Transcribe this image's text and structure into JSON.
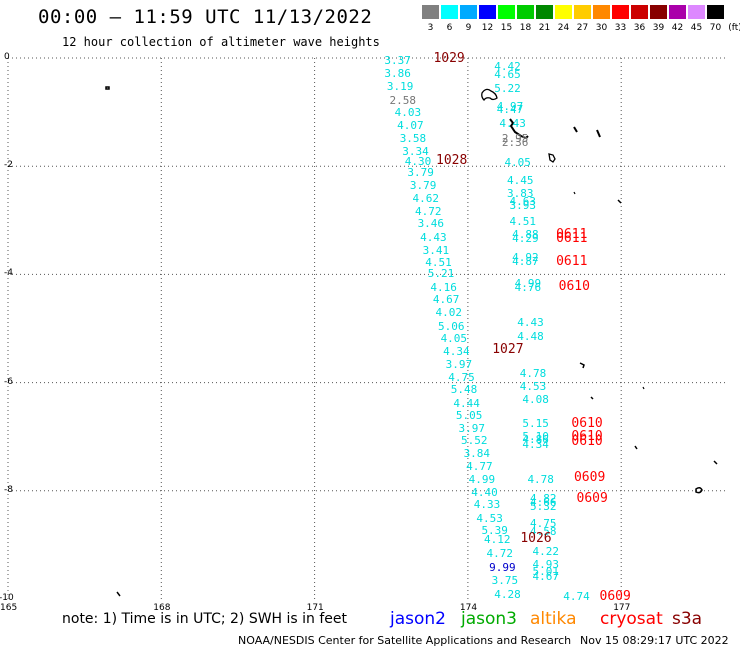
{
  "header": {
    "title": "00:00 — 11:59 UTC 11/13/2022",
    "subtitle": "12 hour collection of altimeter wave heights"
  },
  "legend": {
    "unit": "(ft)",
    "items": [
      {
        "label": "3",
        "color": "#808080"
      },
      {
        "label": "6",
        "color": "#00ffff"
      },
      {
        "label": "9",
        "color": "#00aaff"
      },
      {
        "label": "12",
        "color": "#0000ff"
      },
      {
        "label": "15",
        "color": "#00ff00"
      },
      {
        "label": "18",
        "color": "#00cc00"
      },
      {
        "label": "21",
        "color": "#008800"
      },
      {
        "label": "24",
        "color": "#ffff00"
      },
      {
        "label": "27",
        "color": "#ffcc00"
      },
      {
        "label": "30",
        "color": "#ff8800"
      },
      {
        "label": "33",
        "color": "#ff0000"
      },
      {
        "label": "36",
        "color": "#cc0000"
      },
      {
        "label": "39",
        "color": "#880000"
      },
      {
        "label": "42",
        "color": "#aa00aa"
      },
      {
        "label": "45",
        "color": "#dd88ff"
      },
      {
        "label": "70",
        "color": "#000000"
      }
    ]
  },
  "axes": {
    "lat_labels": [
      "0",
      "-2",
      "-4",
      "-6",
      "-8",
      "-10"
    ],
    "lon_labels": [
      "165",
      "168",
      "171",
      "174",
      "177"
    ]
  },
  "map_data": {
    "lat_range": [
      -10,
      0
    ],
    "lon_range": [
      165,
      179
    ],
    "observations": [
      {
        "text": "3.37",
        "lon": 172.6,
        "lat": -0.03,
        "color": "#00dddd"
      },
      {
        "text": "3.86",
        "lon": 172.6,
        "lat": -0.28,
        "color": "#00dddd"
      },
      {
        "text": "3.19",
        "lon": 172.65,
        "lat": -0.52,
        "color": "#00dddd"
      },
      {
        "text": "2.58",
        "lon": 172.7,
        "lat": -0.77,
        "color": "#777777"
      },
      {
        "text": "4.03",
        "lon": 172.8,
        "lat": -1.0,
        "color": "#00dddd"
      },
      {
        "text": "4.07",
        "lon": 172.85,
        "lat": -1.23,
        "color": "#00dddd"
      },
      {
        "text": "3.58",
        "lon": 172.9,
        "lat": -1.48,
        "color": "#00dddd"
      },
      {
        "text": "3.34",
        "lon": 172.95,
        "lat": -1.72,
        "color": "#00dddd"
      },
      {
        "text": "4.30",
        "lon": 173.0,
        "lat": -1.9,
        "color": "#00dddd"
      },
      {
        "text": "3.79",
        "lon": 173.05,
        "lat": -2.1,
        "color": "#00dddd"
      },
      {
        "text": "3.79",
        "lon": 173.1,
        "lat": -2.35,
        "color": "#00dddd"
      },
      {
        "text": "4.62",
        "lon": 173.15,
        "lat": -2.58,
        "color": "#00dddd"
      },
      {
        "text": "4.72",
        "lon": 173.2,
        "lat": -2.82,
        "color": "#00dddd"
      },
      {
        "text": "3.46",
        "lon": 173.25,
        "lat": -3.05,
        "color": "#00dddd"
      },
      {
        "text": "4.43",
        "lon": 173.3,
        "lat": -3.3,
        "color": "#00dddd"
      },
      {
        "text": "3.41",
        "lon": 173.35,
        "lat": -3.55,
        "color": "#00dddd"
      },
      {
        "text": "4.51",
        "lon": 173.4,
        "lat": -3.78,
        "color": "#00dddd"
      },
      {
        "text": "5.21",
        "lon": 173.45,
        "lat": -3.98,
        "color": "#00dddd"
      },
      {
        "text": "4.16",
        "lon": 173.5,
        "lat": -4.23,
        "color": "#00dddd"
      },
      {
        "text": "4.67",
        "lon": 173.55,
        "lat": -4.46,
        "color": "#00dddd"
      },
      {
        "text": "4.02",
        "lon": 173.6,
        "lat": -4.7,
        "color": "#00dddd"
      },
      {
        "text": "5.06",
        "lon": 173.65,
        "lat": -4.95,
        "color": "#00dddd"
      },
      {
        "text": "4.05",
        "lon": 173.7,
        "lat": -5.18,
        "color": "#00dddd"
      },
      {
        "text": "4.34",
        "lon": 173.75,
        "lat": -5.42,
        "color": "#00dddd"
      },
      {
        "text": "3.97",
        "lon": 173.8,
        "lat": -5.65,
        "color": "#00dddd"
      },
      {
        "text": "4.75",
        "lon": 173.85,
        "lat": -5.9,
        "color": "#00dddd"
      },
      {
        "text": "5.48",
        "lon": 173.9,
        "lat": -6.12,
        "color": "#00dddd"
      },
      {
        "text": "4.44",
        "lon": 173.95,
        "lat": -6.37,
        "color": "#00dddd"
      },
      {
        "text": "5.05",
        "lon": 174.0,
        "lat": -6.6,
        "color": "#00dddd"
      },
      {
        "text": "3.97",
        "lon": 174.05,
        "lat": -6.84,
        "color": "#00dddd"
      },
      {
        "text": "5.52",
        "lon": 174.1,
        "lat": -7.07,
        "color": "#00dddd"
      },
      {
        "text": "3.84",
        "lon": 174.15,
        "lat": -7.3,
        "color": "#00dddd"
      },
      {
        "text": "4.77",
        "lon": 174.2,
        "lat": -7.55,
        "color": "#00dddd"
      },
      {
        "text": "4.99",
        "lon": 174.25,
        "lat": -7.78,
        "color": "#00dddd"
      },
      {
        "text": "4.40",
        "lon": 174.3,
        "lat": -8.02,
        "color": "#00dddd"
      },
      {
        "text": "4.33",
        "lon": 174.35,
        "lat": -8.25,
        "color": "#00dddd"
      },
      {
        "text": "4.53",
        "lon": 174.4,
        "lat": -8.5,
        "color": "#00dddd"
      },
      {
        "text": "5.39",
        "lon": 174.5,
        "lat": -8.72,
        "color": "#00dddd"
      },
      {
        "text": "4.12",
        "lon": 174.55,
        "lat": -8.9,
        "color": "#00dddd"
      },
      {
        "text": "4.72",
        "lon": 174.6,
        "lat": -9.15,
        "color": "#00dddd"
      },
      {
        "text": "9.99",
        "lon": 174.65,
        "lat": -9.4,
        "color": "#0000cc"
      },
      {
        "text": "3.75",
        "lon": 174.7,
        "lat": -9.65,
        "color": "#00dddd"
      },
      {
        "text": "4.28",
        "lon": 174.75,
        "lat": -9.9,
        "color": "#00dddd"
      },
      {
        "text": "4.42",
        "lon": 174.75,
        "lat": -0.15,
        "color": "#00dddd"
      },
      {
        "text": "4.65",
        "lon": 174.75,
        "lat": -0.3,
        "color": "#00dddd"
      },
      {
        "text": "5.22",
        "lon": 174.75,
        "lat": -0.55,
        "color": "#00dddd"
      },
      {
        "text": "4.97",
        "lon": 174.8,
        "lat": -0.88,
        "color": "#00dddd"
      },
      {
        "text": "4.47",
        "lon": 174.8,
        "lat": -0.95,
        "color": "#00dddd"
      },
      {
        "text": "4.43",
        "lon": 174.85,
        "lat": -1.2,
        "color": "#00dddd"
      },
      {
        "text": "2.95",
        "lon": 174.9,
        "lat": -1.48,
        "color": "#777777"
      },
      {
        "text": "2.36",
        "lon": 174.9,
        "lat": -1.56,
        "color": "#777777"
      },
      {
        "text": "4.05",
        "lon": 174.95,
        "lat": -1.92,
        "color": "#00dddd"
      },
      {
        "text": "4.45",
        "lon": 175.0,
        "lat": -2.25,
        "color": "#00dddd"
      },
      {
        "text": "3.83",
        "lon": 175.0,
        "lat": -2.5,
        "color": "#00dddd"
      },
      {
        "text": "4.63",
        "lon": 175.05,
        "lat": -2.64,
        "color": "#00dddd"
      },
      {
        "text": "3.93",
        "lon": 175.05,
        "lat": -2.72,
        "color": "#00dddd"
      },
      {
        "text": "4.51",
        "lon": 175.05,
        "lat": -3.02,
        "color": "#00dddd"
      },
      {
        "text": "4.88",
        "lon": 175.1,
        "lat": -3.25,
        "color": "#00dddd"
      },
      {
        "text": "4.29",
        "lon": 175.1,
        "lat": -3.32,
        "color": "#00dddd"
      },
      {
        "text": "4.92",
        "lon": 175.1,
        "lat": -3.68,
        "color": "#00dddd"
      },
      {
        "text": "4.87",
        "lon": 175.1,
        "lat": -3.76,
        "color": "#00dddd"
      },
      {
        "text": "4.99",
        "lon": 175.15,
        "lat": -4.15,
        "color": "#00dddd"
      },
      {
        "text": "4.76",
        "lon": 175.15,
        "lat": -4.23,
        "color": "#00dddd"
      },
      {
        "text": "4.43",
        "lon": 175.2,
        "lat": -4.88,
        "color": "#00dddd"
      },
      {
        "text": "4.48",
        "lon": 175.2,
        "lat": -5.14,
        "color": "#00dddd"
      },
      {
        "text": "4.78",
        "lon": 175.25,
        "lat": -5.82,
        "color": "#00dddd"
      },
      {
        "text": "4.53",
        "lon": 175.25,
        "lat": -6.06,
        "color": "#00dddd"
      },
      {
        "text": "4.08",
        "lon": 175.3,
        "lat": -6.3,
        "color": "#00dddd"
      },
      {
        "text": "5.15",
        "lon": 175.3,
        "lat": -6.75,
        "color": "#00dddd"
      },
      {
        "text": "5.10",
        "lon": 175.3,
        "lat": -6.98,
        "color": "#00dddd"
      },
      {
        "text": "4.86",
        "lon": 175.3,
        "lat": -7.05,
        "color": "#00dddd"
      },
      {
        "text": "4.34",
        "lon": 175.3,
        "lat": -7.13,
        "color": "#00dddd"
      },
      {
        "text": "4.78",
        "lon": 175.4,
        "lat": -7.78,
        "color": "#00dddd"
      },
      {
        "text": "4.82",
        "lon": 175.45,
        "lat": -8.13,
        "color": "#00dddd"
      },
      {
        "text": "4.66",
        "lon": 175.45,
        "lat": -8.2,
        "color": "#00dddd"
      },
      {
        "text": "5.32",
        "lon": 175.45,
        "lat": -8.28,
        "color": "#00dddd"
      },
      {
        "text": "4.75",
        "lon": 175.45,
        "lat": -8.6,
        "color": "#00dddd"
      },
      {
        "text": "4.58",
        "lon": 175.45,
        "lat": -8.75,
        "color": "#00dddd"
      },
      {
        "text": "4.22",
        "lon": 175.5,
        "lat": -9.12,
        "color": "#00dddd"
      },
      {
        "text": "4.93",
        "lon": 175.5,
        "lat": -9.36,
        "color": "#00dddd"
      },
      {
        "text": "5.01",
        "lon": 175.5,
        "lat": -9.48,
        "color": "#00dddd"
      },
      {
        "text": "4.67",
        "lon": 175.5,
        "lat": -9.58,
        "color": "#00dddd"
      },
      {
        "text": "4.74",
        "lon": 176.1,
        "lat": -9.95,
        "color": "#00dddd"
      }
    ],
    "pressure_labels": [
      {
        "text": "1029",
        "lon": 173.6,
        "lat": 0.0,
        "color": "#880000"
      },
      {
        "text": "1028",
        "lon": 173.65,
        "lat": -1.88,
        "color": "#880000"
      },
      {
        "text": "1027",
        "lon": 174.75,
        "lat": -5.38,
        "color": "#880000"
      },
      {
        "text": "1026",
        "lon": 175.3,
        "lat": -8.87,
        "color": "#880000"
      },
      {
        "text": "0611",
        "lon": 176.0,
        "lat": -3.25,
        "color": "#ff0000"
      },
      {
        "text": "0611",
        "lon": 176.0,
        "lat": -3.33,
        "color": "#ff0000"
      },
      {
        "text": "0611",
        "lon": 176.0,
        "lat": -3.75,
        "color": "#ff0000"
      },
      {
        "text": "0610",
        "lon": 176.05,
        "lat": -4.22,
        "color": "#ff0000"
      },
      {
        "text": "0610",
        "lon": 176.3,
        "lat": -6.75,
        "color": "#ff0000"
      },
      {
        "text": "0610",
        "lon": 176.3,
        "lat": -6.98,
        "color": "#ff0000"
      },
      {
        "text": "0610",
        "lon": 176.3,
        "lat": -7.08,
        "color": "#ff0000"
      },
      {
        "text": "0609",
        "lon": 176.35,
        "lat": -7.75,
        "color": "#ff0000"
      },
      {
        "text": "0609",
        "lon": 176.4,
        "lat": -8.13,
        "color": "#ff0000"
      },
      {
        "text": "0609",
        "lon": 176.85,
        "lat": -9.95,
        "color": "#ff0000"
      }
    ]
  },
  "footer": {
    "note": "note: 1) Time is in UTC; 2) SWH is in feet",
    "satellites": [
      {
        "name": "jason2",
        "color": "#0000ff"
      },
      {
        "name": "jason3",
        "color": "#00aa00"
      },
      {
        "name": "altika",
        "color": "#ff8800"
      },
      {
        "name": "cryosat",
        "color": "#ff0000"
      },
      {
        "name": "s3a",
        "color": "#880000"
      }
    ],
    "credit": "NOAA/NESDIS Center for Satellite Applications and Research",
    "timestamp": "Nov 15 08:29:17 UTC 2022"
  }
}
